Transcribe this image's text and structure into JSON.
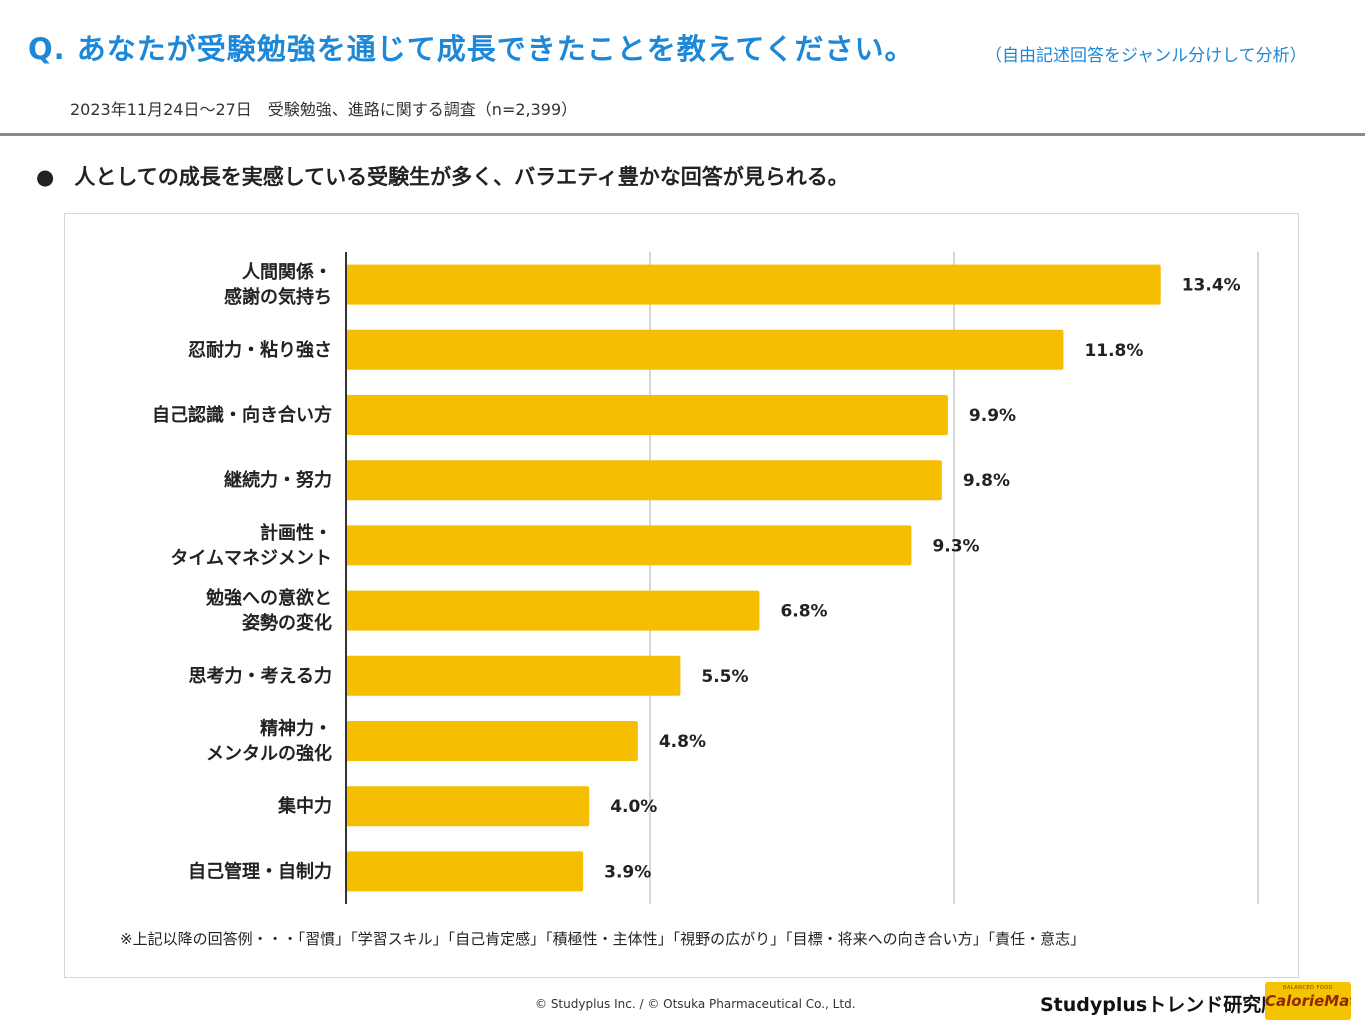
{
  "header": {
    "title": "Q. あなたが受験勉強を通じて成長できたことを教えてください。",
    "subtitle": "（自由記述回答をジャンル分けして分析）",
    "survey_info": "2023年11月24日～27日　受験勉強、進路に関する調査（n=2,399）"
  },
  "summary": {
    "bullet": "●",
    "text": "人としての成長を実感している受験生が多く、バラエティ豊かな回答が見られる。"
  },
  "chart_data": {
    "type": "bar",
    "orientation": "horizontal",
    "title": "",
    "categories": [
      [
        "人間関係・",
        "感謝の気持ち"
      ],
      [
        "忍耐力・粘り強さ"
      ],
      [
        "自己認識・向き合い方"
      ],
      [
        "継続力・努力"
      ],
      [
        "計画性・",
        "タイムマネジメント"
      ],
      [
        "勉強への意欲と",
        "姿勢の変化"
      ],
      [
        "思考力・考える力"
      ],
      [
        "精神力・",
        "メンタルの強化"
      ],
      [
        "集中力"
      ],
      [
        "自己管理・自制力"
      ]
    ],
    "values": [
      13.4,
      11.8,
      9.9,
      9.8,
      9.3,
      6.8,
      5.5,
      4.8,
      4.0,
      3.9
    ],
    "value_labels": [
      "13.4%",
      "11.8%",
      "9.9%",
      "9.8%",
      "9.3%",
      "6.8%",
      "5.5%",
      "4.8%",
      "4.0%",
      "3.9%"
    ],
    "xlim": [
      0,
      15
    ],
    "gridlines": [
      5,
      10,
      15
    ],
    "grid": true,
    "bar_color": "#f6be00",
    "xlabel": "",
    "ylabel": ""
  },
  "note": "※上記以降の回答例・・・「習慣」「学習スキル」「自己肯定感」「積極性・主体性」「視野の広がり」「目標・将来への向き合い方」「責任・意志」",
  "footer": {
    "copyright": "© Studyplus Inc.  / © Otsuka Pharmaceutical Co., Ltd.",
    "brand": "Studyplusトレンド研究所",
    "logo_small": "BALANCED FOOD",
    "logo_main": "CalorieMate"
  },
  "colors": {
    "accent": "#1e88d8",
    "bar": "#f6be00",
    "rule": "#8a8a8a"
  }
}
